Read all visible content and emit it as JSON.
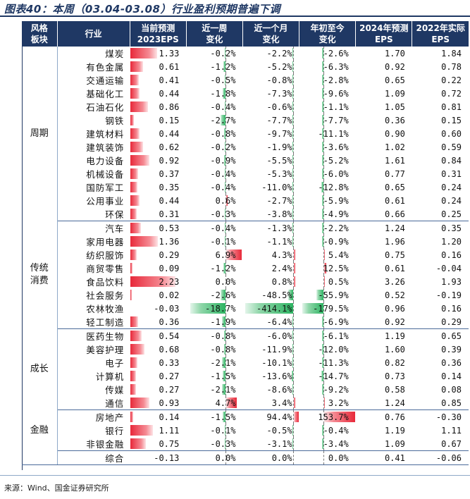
{
  "title": "图表40：本周（03.04-03.08）行业盈利预期普遍下调",
  "headers": {
    "sector": "风格\n板块",
    "industry": "行业",
    "eps2023": "当前预测\n2023EPS",
    "wk": "近一周\n变化",
    "mo": "近一个月\n变化",
    "ytd": "年初至今\n变化",
    "eps2024": "2024年预测\nEPS",
    "eps2022": "2022年实际\nEPS"
  },
  "groups": [
    {
      "sector": "周期",
      "rows": [
        {
          "industry": "煤炭",
          "eps2023": "1.33",
          "wk": "-0.2%",
          "mo": "-2.2%",
          "ytd": "-2.6%",
          "eps2024": "1.70",
          "eps2022": "1.84"
        },
        {
          "industry": "有色金属",
          "eps2023": "0.61",
          "wk": "-1.2%",
          "mo": "-5.2%",
          "ytd": "-6.3%",
          "eps2024": "0.92",
          "eps2022": "0.78"
        },
        {
          "industry": "交通运输",
          "eps2023": "0.41",
          "wk": "-0.5%",
          "mo": "-0.8%",
          "ytd": "-2.8%",
          "eps2024": "0.65",
          "eps2022": "0.22"
        },
        {
          "industry": "基础化工",
          "eps2023": "0.44",
          "wk": "-1.8%",
          "mo": "-7.3%",
          "ytd": "-9.6%",
          "eps2024": "1.09",
          "eps2022": "0.72"
        },
        {
          "industry": "石油石化",
          "eps2023": "0.86",
          "wk": "-0.4%",
          "mo": "-0.6%",
          "ytd": "-1.1%",
          "eps2024": "1.05",
          "eps2022": "0.81"
        },
        {
          "industry": "钢铁",
          "eps2023": "0.15",
          "wk": "-2.7%",
          "mo": "-7.7%",
          "ytd": "-7.7%",
          "eps2024": "0.36",
          "eps2022": "0.15"
        },
        {
          "industry": "建筑材料",
          "eps2023": "0.44",
          "wk": "-0.8%",
          "mo": "-9.7%",
          "ytd": "-11.1%",
          "eps2024": "0.90",
          "eps2022": "0.60"
        },
        {
          "industry": "建筑装饰",
          "eps2023": "0.62",
          "wk": "-0.2%",
          "mo": "-1.9%",
          "ytd": "-3.6%",
          "eps2024": "1.02",
          "eps2022": "0.59"
        },
        {
          "industry": "电力设备",
          "eps2023": "0.92",
          "wk": "-0.9%",
          "mo": "-5.5%",
          "ytd": "-5.2%",
          "eps2024": "1.61",
          "eps2022": "0.84"
        },
        {
          "industry": "机械设备",
          "eps2023": "0.37",
          "wk": "-0.4%",
          "mo": "-5.3%",
          "ytd": "-6.0%",
          "eps2024": "0.77",
          "eps2022": "0.31"
        },
        {
          "industry": "国防军工",
          "eps2023": "0.35",
          "wk": "-0.4%",
          "mo": "-11.0%",
          "ytd": "-12.8%",
          "eps2024": "0.65",
          "eps2022": "0.24"
        },
        {
          "industry": "公用事业",
          "eps2023": "0.44",
          "wk": "0.6%",
          "mo": "-2.7%",
          "ytd": "-5.9%",
          "eps2024": "0.61",
          "eps2022": "0.24"
        },
        {
          "industry": "环保",
          "eps2023": "0.31",
          "wk": "-0.3%",
          "mo": "-3.8%",
          "ytd": "-4.9%",
          "eps2024": "0.66",
          "eps2022": "0.25"
        }
      ]
    },
    {
      "sector": "传统\n消费",
      "rows": [
        {
          "industry": "汽车",
          "eps2023": "0.53",
          "wk": "-0.4%",
          "mo": "-1.3%",
          "ytd": "-2.2%",
          "eps2024": "1.24",
          "eps2022": "0.35"
        },
        {
          "industry": "家用电器",
          "eps2023": "1.36",
          "wk": "-0.1%",
          "mo": "-1.1%",
          "ytd": "-0.9%",
          "eps2024": "1.96",
          "eps2022": "1.20"
        },
        {
          "industry": "纺织服饰",
          "eps2023": "0.29",
          "wk": "6.9%",
          "mo": "4.3%",
          "ytd": "5.4%",
          "eps2024": "0.75",
          "eps2022": "0.16"
        },
        {
          "industry": "商贸零售",
          "eps2023": "0.09",
          "wk": "-1.2%",
          "mo": "2.4%",
          "ytd": "12.5%",
          "eps2024": "0.61",
          "eps2022": "-0.04"
        },
        {
          "industry": "食品饮料",
          "eps2023": "2.23",
          "wk": "0.0%",
          "mo": "0.8%",
          "ytd": "0.5%",
          "eps2024": "3.26",
          "eps2022": "1.93"
        },
        {
          "industry": "社会服务",
          "eps2023": "0.02",
          "wk": "-2.6%",
          "mo": "-48.5%",
          "ytd": "-55.9%",
          "eps2024": "0.52",
          "eps2022": "-0.19"
        },
        {
          "industry": "农林牧渔",
          "eps2023": "-0.03",
          "wk": "-18.7%",
          "mo": "-414.1%",
          "ytd": "-179.5%",
          "eps2024": "0.96",
          "eps2022": "0.16"
        },
        {
          "industry": "轻工制造",
          "eps2023": "0.36",
          "wk": "-1.9%",
          "mo": "-6.4%",
          "ytd": "-6.9%",
          "eps2024": "0.92",
          "eps2022": "0.29"
        }
      ]
    },
    {
      "sector": "成长",
      "rows": [
        {
          "industry": "医药生物",
          "eps2023": "0.54",
          "wk": "-0.8%",
          "mo": "-6.0%",
          "ytd": "-6.1%",
          "eps2024": "1.19",
          "eps2022": "0.65"
        },
        {
          "industry": "美容护理",
          "eps2023": "0.68",
          "wk": "-0.8%",
          "mo": "-11.9%",
          "ytd": "-12.0%",
          "eps2024": "1.60",
          "eps2022": "0.39"
        },
        {
          "industry": "电子",
          "eps2023": "0.33",
          "wk": "-2.1%",
          "mo": "-10.1%",
          "ytd": "-11.3%",
          "eps2024": "0.82",
          "eps2022": "0.36"
        },
        {
          "industry": "计算机",
          "eps2023": "0.27",
          "wk": "-1.5%",
          "mo": "-13.6%",
          "ytd": "-14.7%",
          "eps2024": "0.73",
          "eps2022": "0.14"
        },
        {
          "industry": "传媒",
          "eps2023": "0.27",
          "wk": "-2.1%",
          "mo": "-8.6%",
          "ytd": "-9.2%",
          "eps2024": "0.58",
          "eps2022": "0.08"
        },
        {
          "industry": "通信",
          "eps2023": "0.93",
          "wk": "4.7%",
          "mo": "3.4%",
          "ytd": "3.2%",
          "eps2024": "1.24",
          "eps2022": "0.85"
        }
      ]
    },
    {
      "sector": "金融",
      "rows": [
        {
          "industry": "房地产",
          "eps2023": "0.14",
          "wk": "-1.5%",
          "mo": "94.4%",
          "ytd": "153.7%",
          "eps2024": "0.76",
          "eps2022": "-0.30"
        },
        {
          "industry": "银行",
          "eps2023": "1.11",
          "wk": "-0.1%",
          "mo": "-0.5%",
          "ytd": "-0.4%",
          "eps2024": "1.19",
          "eps2022": "1.11"
        },
        {
          "industry": "非银金融",
          "eps2023": "0.75",
          "wk": "-0.3%",
          "mo": "-3.1%",
          "ytd": "-3.4%",
          "eps2024": "1.09",
          "eps2022": "0.67"
        }
      ]
    },
    {
      "sector": "",
      "rows": [
        {
          "industry": "综合",
          "eps2023": "-0.13",
          "wk": "0.0%",
          "mo": "0.0%",
          "ytd": "0.0%",
          "eps2024": "0.41",
          "eps2022": "-0.06"
        }
      ]
    }
  ],
  "source": "来源：Wind、国金证券研究所"
}
